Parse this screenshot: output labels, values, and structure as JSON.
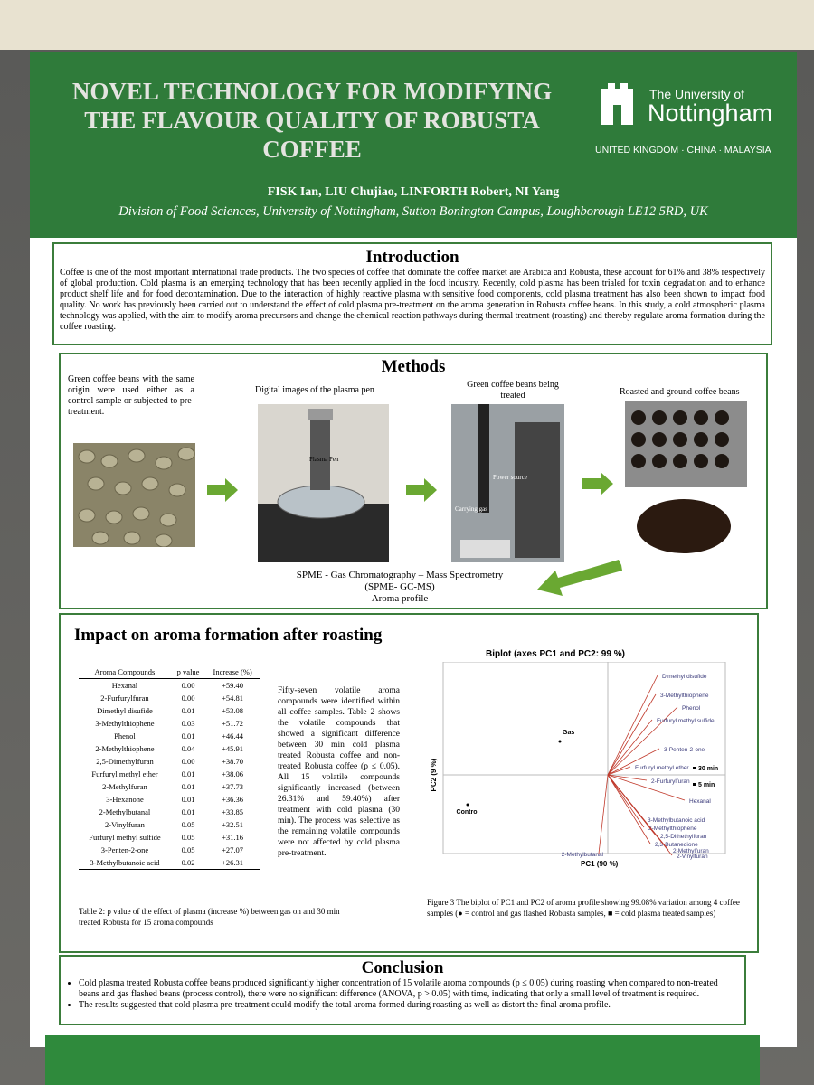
{
  "header": {
    "title_lines": [
      "NOVEL TECHNOLOGY FOR MODIFYING",
      "THE FLAVOUR QUALITY OF ROBUSTA",
      "COFFEE"
    ],
    "university": "The University of",
    "university_name": "Nottingham",
    "tagline": "UNITED KINGDOM · CHINA · MALAYSIA",
    "authors": "FISK Ian, LIU Chujiao, LINFORTH Robert, NI Yang",
    "affiliation": "Division of Food Sciences, University of Nottingham, Sutton Bonington Campus, Loughborough LE12 5RD, UK"
  },
  "introduction": {
    "heading": "Introduction",
    "text": "Coffee is one of the most important international trade products. The two species of coffee that dominate the coffee market are Arabica and Robusta, these account for 61% and 38% respectively of global production. Cold plasma is an emerging technology that has been recently applied in the food industry. Recently, cold plasma has been trialed for toxin degradation and to enhance product shelf life and for food decontamination. Due to the interaction of highly reactive plasma with sensitive food components, cold plasma treatment has also been shown to impact food quality. No work has previously been carried out to understand the effect of cold plasma pre-treatment on the aroma generation in Robusta coffee beans. In this study, a cold atmospheric plasma technology was applied, with the aim to modify aroma precursors and change the chemical reaction pathways during thermal treatment (roasting) and thereby regulate aroma formation during the coffee roasting."
  },
  "methods": {
    "heading": "Methods",
    "steps": [
      "Green coffee beans with the same origin were used either as a control sample or subjected to pre-treatment.",
      "Digital images of the plasma pen",
      "Green coffee beans being treated",
      "Roasted and ground coffee beans"
    ],
    "image_labels": [
      "Plasma Pen",
      "Power source",
      "Carrying gas"
    ],
    "analysis": [
      "SPME - Gas Chromatography – Mass Spectrometry",
      "(SPME- GC-MS)",
      "Aroma profile"
    ]
  },
  "impact": {
    "heading": "Impact on aroma formation after roasting",
    "table": {
      "columns": [
        "Aroma Compounds",
        "p value",
        "Increase (%)"
      ],
      "rows": [
        [
          "Hexanal",
          "0.00",
          "+59.40"
        ],
        [
          "2-Furfurylfuran",
          "0.00",
          "+54.81"
        ],
        [
          "Dimethyl disufide",
          "0.01",
          "+53.08"
        ],
        [
          "3-Methylthiophene",
          "0.03",
          "+51.72"
        ],
        [
          "Phenol",
          "0.01",
          "+46.44"
        ],
        [
          "2-Methylthiophene",
          "0.04",
          "+45.91"
        ],
        [
          "2,5-Dimethylfuran",
          "0.00",
          "+38.70"
        ],
        [
          "Furfuryl methyl ether",
          "0.01",
          "+38.06"
        ],
        [
          "2-Methylfuran",
          "0.01",
          "+37.73"
        ],
        [
          "3-Hexanone",
          "0.01",
          "+36.36"
        ],
        [
          "2-Methylbutanal",
          "0.01",
          "+33.85"
        ],
        [
          "2-Vinylfuran",
          "0.05",
          "+32.51"
        ],
        [
          "Furfuryl methyl sulfide",
          "0.05",
          "+31.16"
        ],
        [
          "3-Penten-2-one",
          "0.05",
          "+27.07"
        ],
        [
          "3-Methylbutanoic acid",
          "0.02",
          "+26.31"
        ]
      ],
      "caption": "Table 2: p value of the effect of plasma (increase %) between gas on and 30 min treated Robusta for 15 aroma compounds"
    },
    "paragraph": "Fifty-seven volatile aroma compounds were identified within all coffee samples. Table 2 shows the volatile compounds that showed a significant difference between 30 min cold plasma treated Robusta coffee and non-treated Robusta coffee (p ≤ 0.05). All 15 volatile compounds significantly increased (between 26.31% and 59.40%) after treatment with cold plasma (30 min). The process was selective as the remaining volatile compounds were not affected by cold plasma pre-treatment.",
    "figure": {
      "title": "Biplot (axes PC1 and PC2: 99 %)",
      "x_label": "PC1 (90 %)",
      "y_label": "PC2 (9 %)",
      "variables": [
        "Dimethyl disufide",
        "3-Methylthiophene",
        "Phenol",
        "Furfuryl methyl sulfide",
        "3-Penten-2-one",
        "Furfuryl methyl ether",
        "2-Furfurylfuran",
        "Hexanal",
        "3-Methylbutanoic acid",
        "2-Methylthiophene",
        "2,5-Dithethylfuran",
        "2,3-Butanedione",
        "2-Methylfuran",
        "2-Vinylfuran",
        "2-Methylbutanal"
      ],
      "observations": [
        "Gas",
        "Control",
        "30 min",
        "5 min"
      ],
      "caption": "Figure 3 The biplot of PC1 and PC2 of aroma profile showing 99.08% variation among 4 coffee samples (● = control and gas flashed Robusta samples, ■ = cold plasma treated samples)"
    }
  },
  "conclusion": {
    "heading": "Conclusion",
    "bullets": [
      "Cold plasma treated Robusta coffee beans produced significantly higher concentration of 15 volatile aroma compounds (p ≤ 0.05) during roasting when compared to non-treated beans and gas flashed beans (process control), there were no significant difference (ANOVA, p > 0.05) with time, indicating that only a small level of treatment is required.",
      "The results suggested that cold plasma pre-treatment could modify the total aroma formed during roasting as well as distort the final aroma profile."
    ]
  }
}
